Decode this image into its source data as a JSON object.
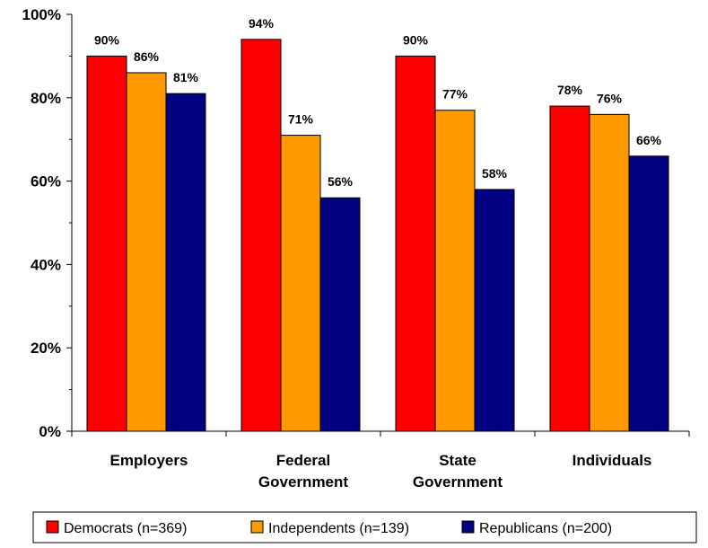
{
  "chart_data": {
    "type": "bar",
    "categories": [
      [
        "Employers"
      ],
      [
        "Federal",
        "Government"
      ],
      [
        "State",
        "Government"
      ],
      [
        "Individuals"
      ]
    ],
    "series": [
      {
        "name": "Democrats (n=369)",
        "color": "#ff0000",
        "values": [
          90,
          94,
          90,
          78
        ]
      },
      {
        "name": "Independents (n=139)",
        "color": "#ff9900",
        "values": [
          86,
          71,
          77,
          76
        ]
      },
      {
        "name": "Republicans (n=200)",
        "color": "#000080",
        "values": [
          81,
          56,
          58,
          66
        ]
      }
    ],
    "data_labels": [
      [
        "90%",
        "94%",
        "90%",
        "78%"
      ],
      [
        "86%",
        "71%",
        "77%",
        "76%"
      ],
      [
        "81%",
        "56%",
        "58%",
        "66%"
      ]
    ],
    "y_ticks": [
      0,
      20,
      40,
      60,
      80,
      100
    ],
    "y_tick_labels": [
      "0%",
      "20%",
      "40%",
      "60%",
      "80%",
      "100%"
    ],
    "ylim": [
      0,
      100
    ],
    "grid": false,
    "legend_position": "bottom"
  }
}
